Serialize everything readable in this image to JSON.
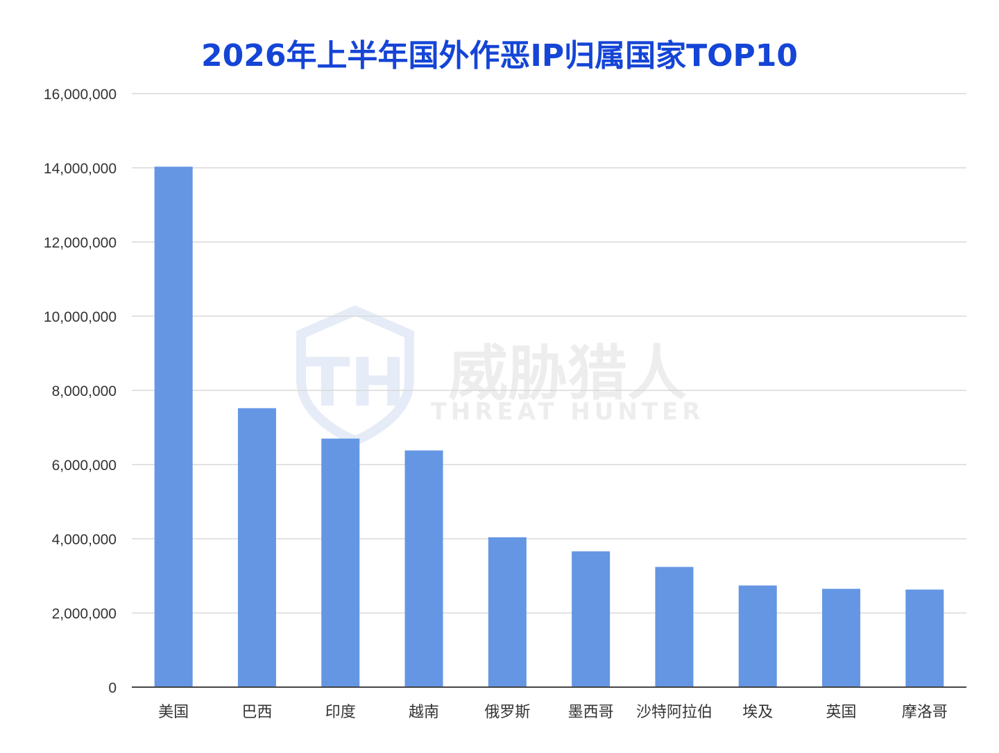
{
  "chart_data": {
    "type": "bar",
    "title": "2026年上半年国外作恶IP归属国家TOP10",
    "xlabel": "",
    "ylabel": "",
    "categories": [
      "美国",
      "巴西",
      "印度",
      "越南",
      "俄罗斯",
      "墨西哥",
      "沙特阿拉伯",
      "埃及",
      "英国",
      "摩洛哥"
    ],
    "values": [
      14030000,
      7520000,
      6700000,
      6380000,
      4040000,
      3660000,
      3240000,
      2740000,
      2650000,
      2630000
    ],
    "ylim": [
      0,
      16000000
    ],
    "yticks": [
      0,
      2000000,
      4000000,
      6000000,
      8000000,
      10000000,
      12000000,
      14000000,
      16000000
    ],
    "ytick_labels": [
      "0",
      "2,000,000",
      "4,000,000",
      "6,000,000",
      "8,000,000",
      "10,000,000",
      "12,000,000",
      "14,000,000",
      "16,000,000"
    ],
    "grid": true,
    "legend": "none",
    "colors": {
      "bar": "#6496e4",
      "title": "#1545d6",
      "grid": "#d9d9d9",
      "axis": "#444444"
    }
  },
  "watermark": {
    "brand_cn": "威胁猎人",
    "brand_en": "THREAT HUNTER",
    "logo_letters": "TH",
    "icon": "shield-logo-icon"
  }
}
